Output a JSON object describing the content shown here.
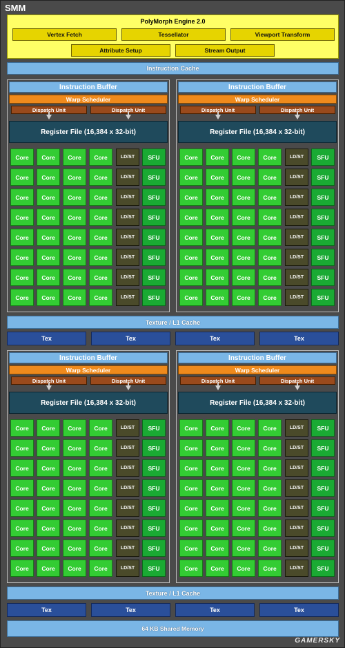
{
  "smm_title": "SMM",
  "polymorph": {
    "title": "PolyMorph Engine 2.0",
    "boxes": [
      "Vertex Fetch",
      "Tessellator",
      "Viewport Transform",
      "Attribute Setup",
      "Stream Output"
    ]
  },
  "instruction_cache": "Instruction Cache",
  "quad": {
    "instruction_buffer": "Instruction Buffer",
    "warp_scheduler": "Warp Scheduler",
    "dispatch_unit": "Dispatch Unit",
    "register_file": "Register File (16,384 x 32-bit)",
    "core": "Core",
    "ldst": "LD/ST",
    "sfu": "SFU"
  },
  "texture_cache": "Texture / L1 Cache",
  "tex": "Tex",
  "shared_memory": "64 KB Shared Memory",
  "watermark": "GAMERSKY",
  "colors": {
    "background": "#4a4a4a",
    "polymorph": "#ffff66",
    "cache": "#7ab6e6",
    "warp_scheduler": "#ef8a1c",
    "dispatch_unit": "#9a4a1c",
    "register_file": "#1f4a5c",
    "core": "#33cc33",
    "ldst": "#4a4a2a",
    "sfu": "#1aaa33",
    "tex": "#2a4f9a"
  }
}
